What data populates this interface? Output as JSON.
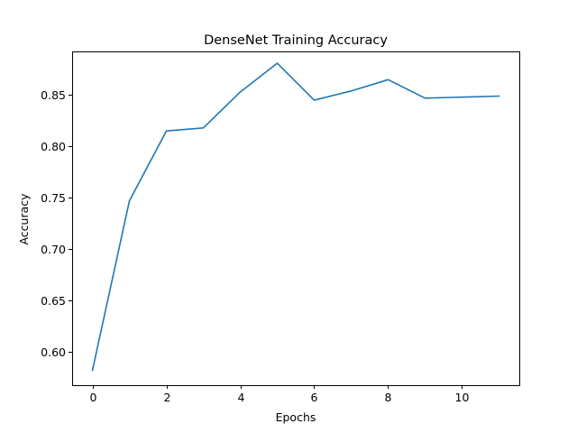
{
  "chart_data": {
    "type": "line",
    "title": "DenseNet Training Accuracy",
    "xlabel": "Epochs",
    "ylabel": "Accuracy",
    "xlim": [
      -0.55,
      11.55
    ],
    "ylim": [
      0.5675,
      0.8925
    ],
    "xticks": [
      0,
      2,
      4,
      6,
      8,
      10
    ],
    "yticks": [
      0.6,
      0.65,
      0.7,
      0.75,
      0.8,
      0.85
    ],
    "ytick_labels": [
      "0.60",
      "0.65",
      "0.70",
      "0.75",
      "0.80",
      "0.85"
    ],
    "grid": false,
    "line_color": "#1f77b4",
    "series": [
      {
        "x": [
          0,
          1,
          2,
          3,
          4,
          5,
          6,
          7,
          8,
          9,
          10,
          11
        ],
        "values": [
          0.582,
          0.747,
          0.815,
          0.818,
          0.853,
          0.881,
          0.845,
          0.854,
          0.865,
          0.847,
          0.848,
          0.849
        ]
      }
    ]
  }
}
